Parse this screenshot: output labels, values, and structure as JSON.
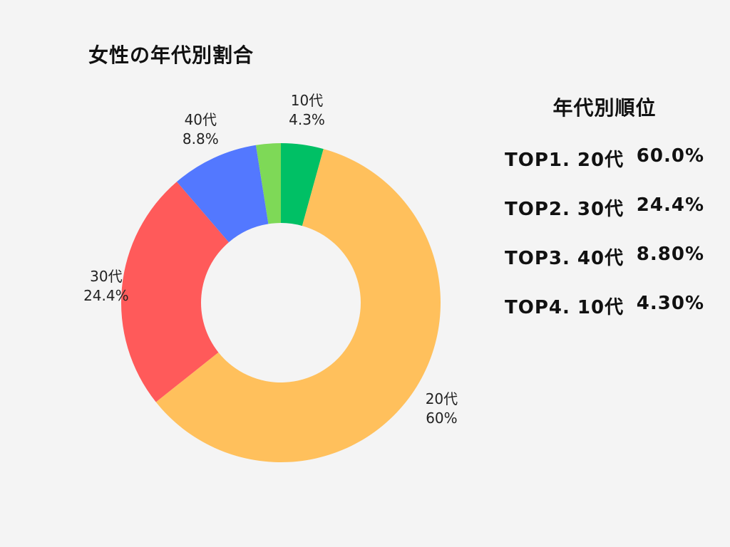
{
  "title": "女性の年代別割合",
  "ranking": {
    "title": "年代別順位",
    "rows": [
      {
        "label": "TOP1. 20代",
        "value": "60.0%"
      },
      {
        "label": "TOP2. 30代",
        "value": "24.4%"
      },
      {
        "label": "TOP3. 40代",
        "value": "8.80%"
      },
      {
        "label": "TOP4. 10代",
        "value": "4.30%"
      }
    ]
  },
  "chart_data": {
    "type": "pie",
    "style": "donut",
    "title": "女性の年代別割合",
    "slices": [
      {
        "name": "10代",
        "value": 4.3,
        "label_value": "4.3%",
        "color": "#00c065"
      },
      {
        "name": "20代",
        "value": 60,
        "label_value": "60%",
        "color": "#ffc05c"
      },
      {
        "name": "30代",
        "value": 24.4,
        "label_value": "24.4%",
        "color": "#ff5a5a"
      },
      {
        "name": "40代",
        "value": 8.8,
        "label_value": "8.8%",
        "color": "#5378ff"
      },
      {
        "name": "",
        "value": 2.5,
        "label_value": "",
        "color": "#7ed957"
      }
    ],
    "start_angle": "12 o'clock",
    "direction": "clockwise"
  }
}
